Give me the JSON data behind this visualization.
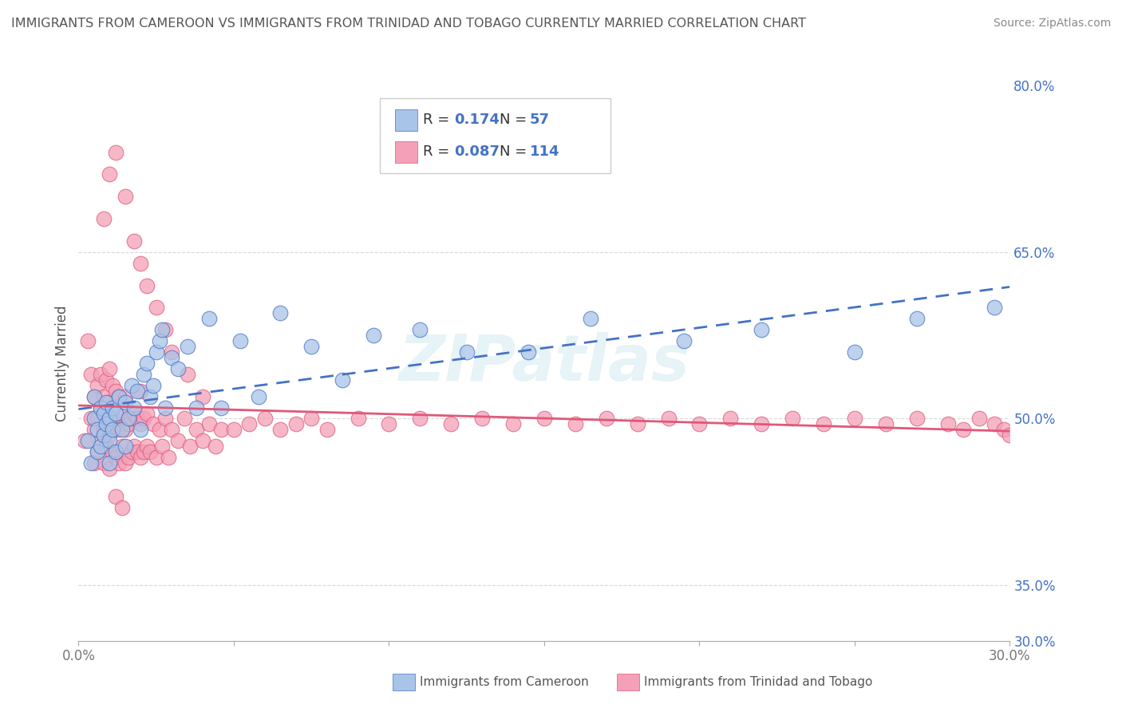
{
  "title": "IMMIGRANTS FROM CAMEROON VS IMMIGRANTS FROM TRINIDAD AND TOBAGO CURRENTLY MARRIED CORRELATION CHART",
  "source": "Source: ZipAtlas.com",
  "ylabel": "Currently Married",
  "series1_label": "Immigrants from Cameroon",
  "series2_label": "Immigrants from Trinidad and Tobago",
  "series1_color": "#a8c4e8",
  "series2_color": "#f4a0b8",
  "series1_line_color": "#4472c4",
  "series2_line_color": "#e05878",
  "series1_R": 0.174,
  "series1_N": 57,
  "series2_R": 0.087,
  "series2_N": 114,
  "xmin": 0.0,
  "xmax": 0.3,
  "ymin": 0.3,
  "ymax": 0.8,
  "title_color": "#555555",
  "source_color": "#888888",
  "axis_label_color": "#555555",
  "tick_color": "#777777",
  "ytick_color": "#4472c4",
  "grid_color": "#d8d8d8",
  "watermark": "ZIPatlas",
  "series1_x": [
    0.003,
    0.004,
    0.005,
    0.005,
    0.006,
    0.006,
    0.007,
    0.007,
    0.008,
    0.008,
    0.009,
    0.009,
    0.01,
    0.01,
    0.01,
    0.011,
    0.011,
    0.012,
    0.012,
    0.013,
    0.014,
    0.015,
    0.015,
    0.016,
    0.017,
    0.018,
    0.019,
    0.02,
    0.021,
    0.022,
    0.023,
    0.024,
    0.025,
    0.026,
    0.027,
    0.028,
    0.03,
    0.032,
    0.035,
    0.038,
    0.042,
    0.046,
    0.052,
    0.058,
    0.065,
    0.075,
    0.085,
    0.095,
    0.11,
    0.125,
    0.145,
    0.165,
    0.195,
    0.22,
    0.25,
    0.27,
    0.295
  ],
  "series1_y": [
    0.48,
    0.46,
    0.5,
    0.52,
    0.47,
    0.49,
    0.51,
    0.475,
    0.485,
    0.505,
    0.495,
    0.515,
    0.46,
    0.48,
    0.5,
    0.49,
    0.51,
    0.47,
    0.505,
    0.52,
    0.49,
    0.475,
    0.515,
    0.5,
    0.53,
    0.51,
    0.525,
    0.49,
    0.54,
    0.55,
    0.52,
    0.53,
    0.56,
    0.57,
    0.58,
    0.51,
    0.555,
    0.545,
    0.565,
    0.51,
    0.59,
    0.51,
    0.57,
    0.52,
    0.595,
    0.565,
    0.535,
    0.575,
    0.58,
    0.56,
    0.56,
    0.59,
    0.57,
    0.58,
    0.56,
    0.59,
    0.6
  ],
  "series2_x": [
    0.002,
    0.003,
    0.004,
    0.004,
    0.005,
    0.005,
    0.005,
    0.006,
    0.006,
    0.006,
    0.007,
    0.007,
    0.007,
    0.008,
    0.008,
    0.008,
    0.009,
    0.009,
    0.009,
    0.01,
    0.01,
    0.01,
    0.01,
    0.011,
    0.011,
    0.011,
    0.012,
    0.012,
    0.012,
    0.013,
    0.013,
    0.013,
    0.014,
    0.014,
    0.015,
    0.015,
    0.015,
    0.016,
    0.016,
    0.017,
    0.017,
    0.018,
    0.018,
    0.019,
    0.019,
    0.02,
    0.02,
    0.02,
    0.021,
    0.021,
    0.022,
    0.022,
    0.023,
    0.024,
    0.025,
    0.026,
    0.027,
    0.028,
    0.029,
    0.03,
    0.032,
    0.034,
    0.036,
    0.038,
    0.04,
    0.042,
    0.044,
    0.046,
    0.05,
    0.055,
    0.06,
    0.065,
    0.07,
    0.075,
    0.08,
    0.09,
    0.1,
    0.11,
    0.12,
    0.13,
    0.14,
    0.15,
    0.16,
    0.17,
    0.18,
    0.19,
    0.2,
    0.21,
    0.22,
    0.23,
    0.24,
    0.25,
    0.26,
    0.27,
    0.28,
    0.285,
    0.29,
    0.295,
    0.298,
    0.3,
    0.008,
    0.01,
    0.012,
    0.015,
    0.018,
    0.02,
    0.022,
    0.025,
    0.028,
    0.03,
    0.035,
    0.04,
    0.012,
    0.014
  ],
  "series2_y": [
    0.48,
    0.57,
    0.5,
    0.54,
    0.46,
    0.49,
    0.52,
    0.47,
    0.5,
    0.53,
    0.48,
    0.51,
    0.54,
    0.46,
    0.49,
    0.52,
    0.475,
    0.505,
    0.535,
    0.455,
    0.485,
    0.515,
    0.545,
    0.47,
    0.5,
    0.53,
    0.465,
    0.495,
    0.525,
    0.46,
    0.49,
    0.52,
    0.475,
    0.505,
    0.46,
    0.49,
    0.52,
    0.465,
    0.495,
    0.47,
    0.5,
    0.475,
    0.505,
    0.47,
    0.5,
    0.465,
    0.495,
    0.525,
    0.47,
    0.5,
    0.475,
    0.505,
    0.47,
    0.495,
    0.465,
    0.49,
    0.475,
    0.5,
    0.465,
    0.49,
    0.48,
    0.5,
    0.475,
    0.49,
    0.48,
    0.495,
    0.475,
    0.49,
    0.49,
    0.495,
    0.5,
    0.49,
    0.495,
    0.5,
    0.49,
    0.5,
    0.495,
    0.5,
    0.495,
    0.5,
    0.495,
    0.5,
    0.495,
    0.5,
    0.495,
    0.5,
    0.495,
    0.5,
    0.495,
    0.5,
    0.495,
    0.5,
    0.495,
    0.5,
    0.495,
    0.49,
    0.5,
    0.495,
    0.49,
    0.485,
    0.68,
    0.72,
    0.74,
    0.7,
    0.66,
    0.64,
    0.62,
    0.6,
    0.58,
    0.56,
    0.54,
    0.52,
    0.43,
    0.42
  ]
}
